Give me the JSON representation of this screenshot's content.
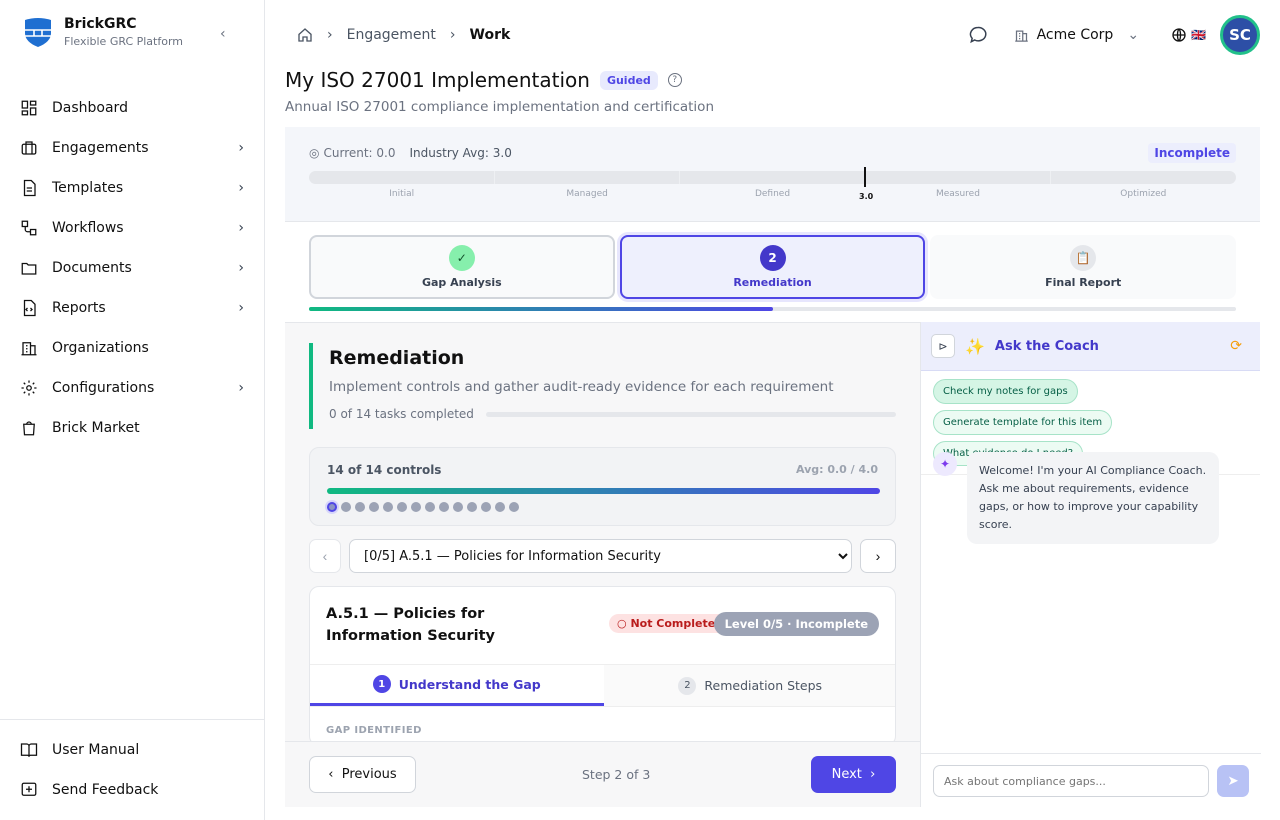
{
  "brand": {
    "name": "BrickGRC",
    "tagline": "Flexible GRC Platform",
    "collapse": "‹"
  },
  "sidebar": {
    "items": [
      {
        "label": "Dashboard",
        "icon": "dashboard-icon",
        "chevron": false
      },
      {
        "label": "Engagements",
        "icon": "briefcase-icon",
        "chevron": true
      },
      {
        "label": "Templates",
        "icon": "file-icon",
        "chevron": true
      },
      {
        "label": "Workflows",
        "icon": "workflow-icon",
        "chevron": true
      },
      {
        "label": "Documents",
        "icon": "folder-icon",
        "chevron": true
      },
      {
        "label": "Reports",
        "icon": "report-icon",
        "chevron": true
      },
      {
        "label": "Organizations",
        "icon": "building-icon",
        "chevron": false
      },
      {
        "label": "Configurations",
        "icon": "gear-icon",
        "chevron": true
      },
      {
        "label": "Brick Market",
        "icon": "shopping-bag-icon",
        "chevron": false
      }
    ],
    "footer": [
      {
        "label": "User Manual",
        "icon": "book-icon"
      },
      {
        "label": "Send Feedback",
        "icon": "feedback-icon"
      }
    ]
  },
  "breadcrumb": {
    "items": [
      "Engagement",
      "Work"
    ]
  },
  "header": {
    "org": "Acme Corp",
    "avatar": "SC",
    "flag": "🇬🇧"
  },
  "page": {
    "title": "My ISO 27001 Implementation",
    "badge": "Guided",
    "subtitle": "Annual ISO 27001 compliance implementation and certification"
  },
  "maturity": {
    "current": "Current: 0.0",
    "industry": "Industry Avg: 3.0",
    "status": "Incomplete",
    "levels": [
      "Initial",
      "Managed",
      "Defined",
      "Measured",
      "Optimized"
    ],
    "marker_label": "3.0",
    "marker_value": 3.0
  },
  "steps": [
    {
      "label": "Gap Analysis",
      "state": "done"
    },
    {
      "label": "Remediation",
      "number": "2",
      "state": "active"
    },
    {
      "label": "Final Report",
      "state": "future"
    }
  ],
  "steps_progress_pct": 50,
  "remediation": {
    "title": "Remediation",
    "description": "Implement controls and gather audit-ready evidence for each requirement",
    "tasks": "0 of 14 tasks completed",
    "tasks_progress": 0
  },
  "controls": {
    "count": "14 of 14 controls",
    "avg": "Avg: 0.0 / 4.0",
    "total": 14,
    "current_index": 0
  },
  "selector": {
    "value": "[0/5] A.5.1 — Policies for Information Security"
  },
  "control": {
    "title": "A.5.1 — Policies for Information Security",
    "status": "Not Completed",
    "level": "Level 0/5 · Incomplete",
    "tabs": [
      {
        "n": "1",
        "label": "Understand the Gap"
      },
      {
        "n": "2",
        "label": "Remediation Steps"
      }
    ],
    "section": "GAP IDENTIFIED"
  },
  "footer_nav": {
    "previous": "Previous",
    "step": "Step 2 of 3",
    "next": "Next"
  },
  "coach": {
    "title": "Ask the Coach",
    "chips": [
      "Check my notes for gaps",
      "Generate template for this item",
      "What evidence do I need?"
    ],
    "message": "Welcome! I'm your AI Compliance Coach. Ask me about requirements, evidence gaps, or how to improve your capability score.",
    "placeholder": "Ask about compliance gaps..."
  },
  "colors": {
    "accent": "#4f46e5",
    "success": "#10b981",
    "danger": "#b91c1c"
  }
}
